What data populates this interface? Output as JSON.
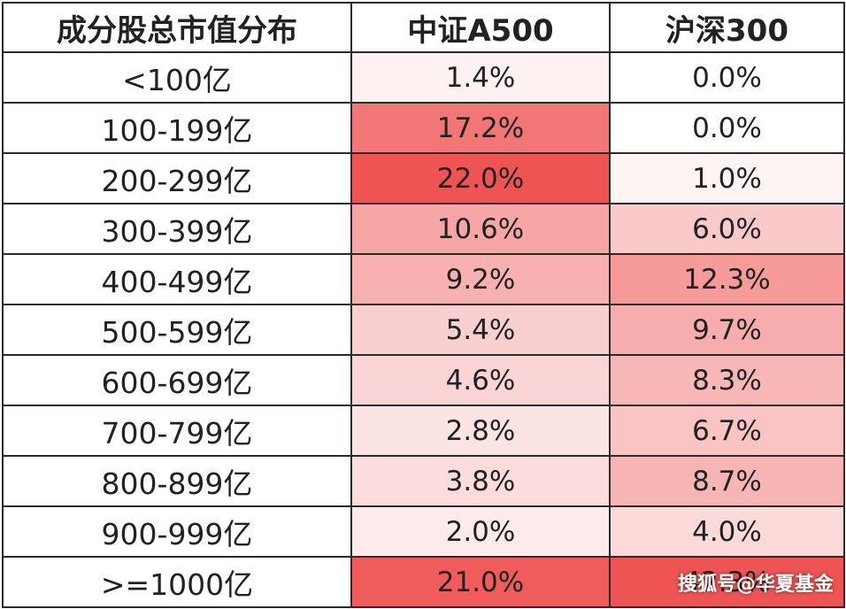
{
  "chart_data": {
    "type": "table",
    "columns": [
      "成分股总市值分布",
      "中证A500",
      "沪深300"
    ],
    "categories": [
      "<100亿",
      "100-199亿",
      "200-299亿",
      "300-399亿",
      "400-499亿",
      "500-599亿",
      "600-699亿",
      "700-799亿",
      "800-899亿",
      "900-999亿",
      ">=1000亿"
    ],
    "series": [
      {
        "name": "中证A500",
        "values": [
          1.4,
          17.2,
          22.0,
          10.6,
          9.2,
          5.4,
          4.6,
          2.8,
          3.8,
          2.0,
          21.0
        ],
        "labels": [
          "1.4%",
          "17.2%",
          "22.0%",
          "10.6%",
          "9.2%",
          "5.4%",
          "4.6%",
          "2.8%",
          "3.8%",
          "2.0%",
          "21.0%"
        ]
      },
      {
        "name": "沪深300",
        "values": [
          0.0,
          0.0,
          1.0,
          6.0,
          12.3,
          9.7,
          8.3,
          6.7,
          8.7,
          4.0,
          42.3
        ],
        "labels": [
          "0.0%",
          "0.0%",
          "1.0%",
          "6.0%",
          "12.3%",
          "9.7%",
          "8.3%",
          "6.7%",
          "8.7%",
          "4.0%",
          "42.3%"
        ]
      }
    ],
    "color_scale": {
      "low": "#ffffff",
      "high": "#ef5454"
    }
  },
  "watermark": "搜狐号@华夏基金"
}
